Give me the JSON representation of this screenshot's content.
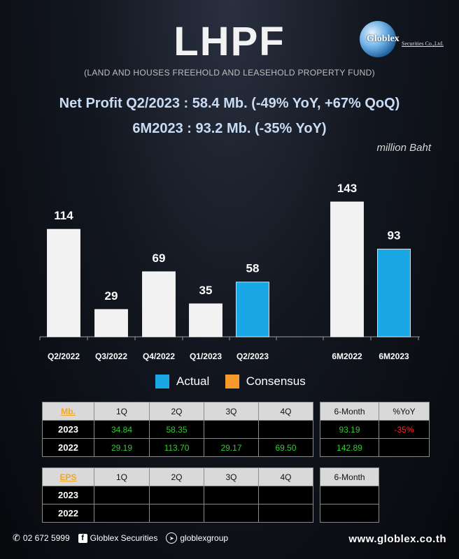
{
  "header": {
    "title": "LHPF",
    "subtitle": "(LAND AND HOUSES FREEHOLD AND LEASEHOLD PROPERTY FUND)",
    "logo_word": "Globlex",
    "logo_sub": "Securities Co.,Ltd."
  },
  "headline": {
    "line1": "Net Profit  Q2/2023 : 58.4 Mb. (-49% YoY, +67% QoQ)",
    "line2": "6M2023 : 93.2 Mb. (-35% YoY)"
  },
  "unit_label": "million Baht",
  "colors": {
    "prior_bar": "#f2f2f2",
    "actual_bar": "#1aa7e6",
    "consensus_bar": "#f59a2b"
  },
  "chart_data": {
    "type": "bar",
    "categories": [
      "Q2/2022",
      "Q3/2022",
      "Q4/2022",
      "Q1/2023",
      "Q2/2023",
      "6M2022",
      "6M2023"
    ],
    "values": [
      114,
      29,
      69,
      35,
      58,
      143,
      93
    ],
    "labels": [
      "114",
      "29",
      "69",
      "35",
      "58",
      "143",
      "93"
    ],
    "highlight": [
      false,
      false,
      false,
      false,
      true,
      false,
      true
    ],
    "legend": [
      "Actual",
      "Consensus"
    ]
  },
  "table_main": {
    "corner": "Mb.",
    "headers": [
      "1Q",
      "2Q",
      "3Q",
      "4Q"
    ],
    "rows": [
      {
        "year": "2023",
        "values": [
          "34.84",
          "58.35",
          "",
          ""
        ]
      },
      {
        "year": "2022",
        "values": [
          "29.19",
          "113.70",
          "29.17",
          "69.50"
        ]
      }
    ]
  },
  "table_half": {
    "headers": [
      "6-Month",
      "%YoY"
    ],
    "rows": [
      {
        "values": [
          "93.19",
          "-35%"
        ]
      },
      {
        "values": [
          "142.89",
          ""
        ]
      }
    ]
  },
  "table_eps": {
    "corner": "EPS",
    "headers": [
      "1Q",
      "2Q",
      "3Q",
      "4Q"
    ],
    "rows": [
      {
        "year": "2023",
        "values": [
          "",
          "",
          "",
          ""
        ]
      },
      {
        "year": "2022",
        "values": [
          "",
          "",
          "",
          ""
        ]
      }
    ]
  },
  "table_eps_half": {
    "headers": [
      "6-Month"
    ],
    "rows": [
      {
        "values": [
          ""
        ]
      },
      {
        "values": [
          ""
        ]
      }
    ]
  },
  "footer": {
    "phone": "02 672 5999",
    "facebook": "Globlex Securities",
    "telegram": "globlexgroup",
    "website": "www.globlex.co.th"
  }
}
